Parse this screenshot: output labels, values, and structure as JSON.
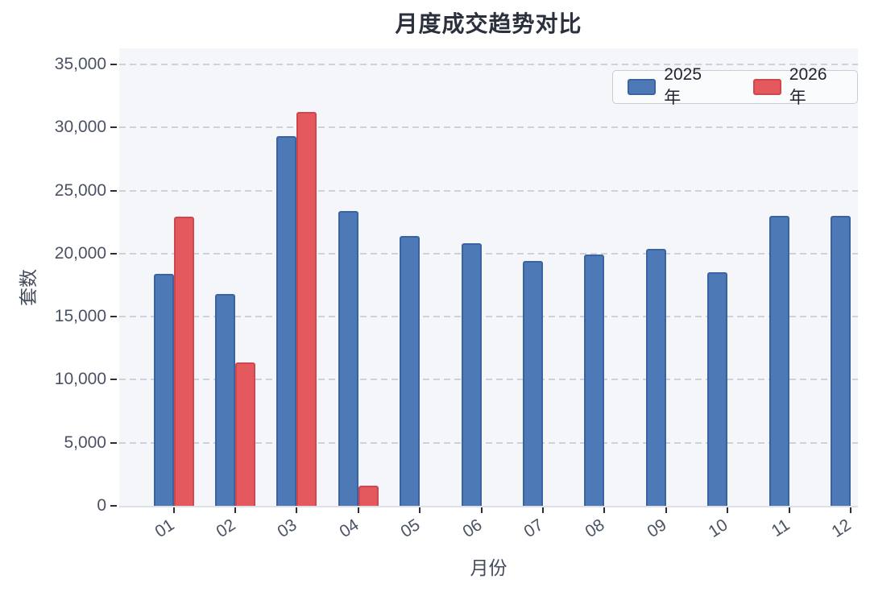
{
  "title": "月度成交趋势对比",
  "chart_data": {
    "type": "bar",
    "title": "月度成交趋势对比",
    "xlabel": "月份",
    "ylabel": "套数",
    "categories": [
      "01",
      "02",
      "03",
      "04",
      "05",
      "06",
      "07",
      "08",
      "09",
      "10",
      "11",
      "12"
    ],
    "series": [
      {
        "name": "2025年",
        "color": "#4e79b7",
        "border": "#3a63a2",
        "values": [
          18400,
          16800,
          29300,
          23400,
          21400,
          20800,
          19400,
          19900,
          20400,
          18500,
          23000,
          23000
        ]
      },
      {
        "name": "2026年",
        "color": "#e4595e",
        "border": "#cf474d",
        "values": [
          22900,
          11400,
          31200,
          1600,
          null,
          null,
          null,
          null,
          null,
          null,
          null,
          null
        ]
      }
    ],
    "ylim": [
      0,
      35000
    ],
    "ytick_values": [
      0,
      5000,
      10000,
      15000,
      20000,
      25000,
      30000,
      35000
    ],
    "ytick_labels": [
      "0",
      "5,000",
      "10,000",
      "15,000",
      "20,000",
      "25,000",
      "30,000",
      "35,000"
    ],
    "grid": "horizontal-dashed",
    "legend_position": "top-right",
    "plot_background": "#f4f6f9",
    "gridline_color": "#ccd2da"
  }
}
